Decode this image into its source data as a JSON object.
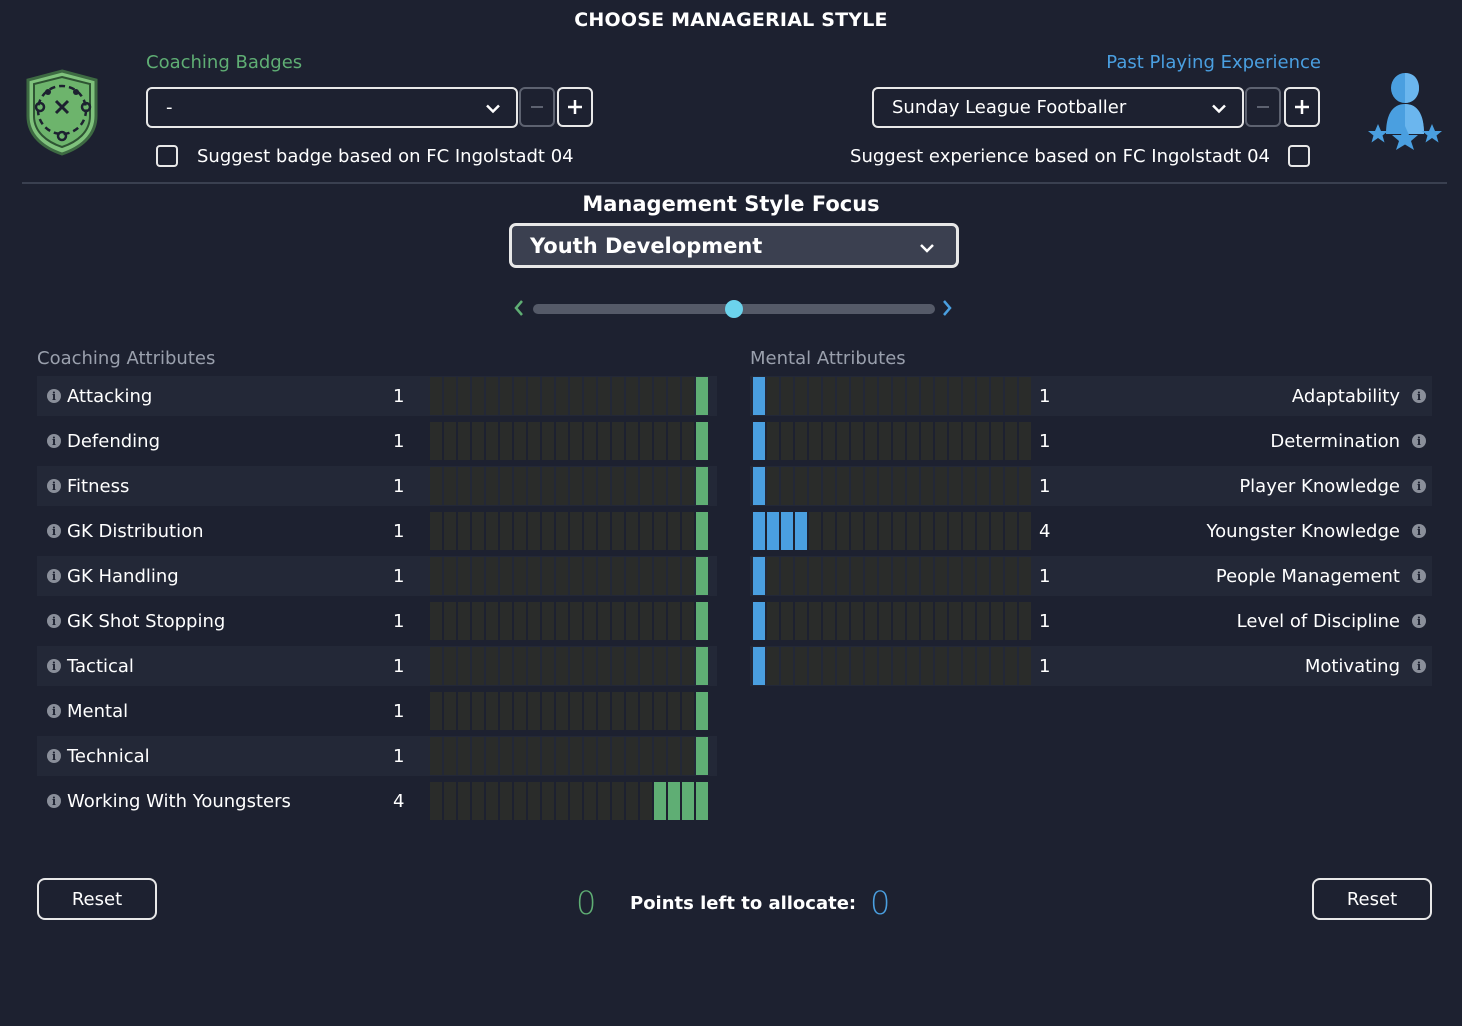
{
  "title": "CHOOSE MANAGERIAL STYLE",
  "coaching": {
    "label": "Coaching Badges",
    "value": "-",
    "suggest_label": "Suggest badge based on FC Ingolstadt 04",
    "suggest_checked": false
  },
  "experience": {
    "label": "Past Playing Experience",
    "value": "Sunday League Footballer",
    "suggest_label": "Suggest experience based on FC Ingolstadt 04",
    "suggest_checked": false
  },
  "focus": {
    "title": "Management Style Focus",
    "value": "Youth Development",
    "slider_fraction": 0.5
  },
  "coaching_attributes": {
    "label": "Coaching Attributes",
    "color": "#5fae74",
    "max": 20,
    "items": [
      {
        "name": "Attacking",
        "value": 1
      },
      {
        "name": "Defending",
        "value": 1
      },
      {
        "name": "Fitness",
        "value": 1
      },
      {
        "name": "GK Distribution",
        "value": 1
      },
      {
        "name": "GK Handling",
        "value": 1
      },
      {
        "name": "GK Shot Stopping",
        "value": 1
      },
      {
        "name": "Tactical",
        "value": 1
      },
      {
        "name": "Mental",
        "value": 1
      },
      {
        "name": "Technical",
        "value": 1
      },
      {
        "name": "Working With Youngsters",
        "value": 4
      }
    ]
  },
  "mental_attributes": {
    "label": "Mental Attributes",
    "color": "#4a9fe0",
    "max": 20,
    "items": [
      {
        "name": "Adaptability",
        "value": 1
      },
      {
        "name": "Determination",
        "value": 1
      },
      {
        "name": "Player Knowledge",
        "value": 1
      },
      {
        "name": "Youngster Knowledge",
        "value": 4
      },
      {
        "name": "People Management",
        "value": 1
      },
      {
        "name": "Level of Discipline",
        "value": 1
      },
      {
        "name": "Motivating",
        "value": 1
      }
    ]
  },
  "footer": {
    "reset_left": "Reset",
    "reset_right": "Reset",
    "points_label": "Points left to allocate:",
    "coaching_points": "0",
    "mental_points": "0"
  },
  "icons": {
    "badge": "coaching-badge-icon",
    "player": "player-experience-icon",
    "info": "info-icon",
    "chevron": "chevron-down-icon"
  }
}
